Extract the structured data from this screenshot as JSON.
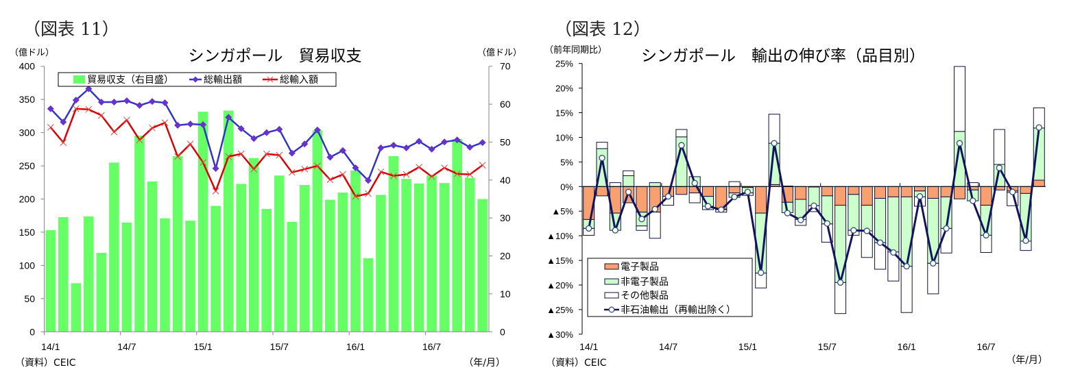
{
  "figure_labels": {
    "left": "（図表 11）",
    "right": "（図表 12）"
  },
  "chart_data": [
    {
      "type": "bar+line",
      "title": "シンガポール　貿易収支",
      "ylabel_left": "（億ドル）",
      "ylabel_right": "（億ドル）",
      "xlabel": "（年/月）",
      "source": "（資料）CEIC",
      "ylim_left": [
        0,
        400
      ],
      "ylim_right": [
        0,
        70
      ],
      "yticks_left": [
        "0",
        "50",
        "100",
        "150",
        "200",
        "250",
        "300",
        "350",
        "400"
      ],
      "yticks_right": [
        "0",
        "10",
        "20",
        "30",
        "40",
        "50",
        "60",
        "70"
      ],
      "xtick_labels": [
        "14/1",
        "14/7",
        "15/1",
        "15/7",
        "16/1",
        "16/7"
      ],
      "months_per_tick": 6,
      "grid": false,
      "legend_position": "top-left",
      "series": [
        {
          "name": "貿易収支（右目盛）",
          "type": "bar",
          "axis": "right",
          "color": "#66FF66",
          "values": [
            26.8,
            30.2,
            12.8,
            30.4,
            20.8,
            44.6,
            28.8,
            51.7,
            39.6,
            29.9,
            46.3,
            29.3,
            58.0,
            33.2,
            58.3,
            39.0,
            45.8,
            32.4,
            41.2,
            29.0,
            38.7,
            53.1,
            34.8,
            36.7,
            42.5,
            19.4,
            36.1,
            46.3,
            40.3,
            39.1,
            41.2,
            39.2,
            50.8,
            40.6,
            35.0
          ]
        },
        {
          "name": "総輸出額",
          "type": "line",
          "axis": "left",
          "color": "#3333CC",
          "marker": "diamond",
          "marker_color": "#6633CC",
          "values": [
            336,
            316,
            349,
            366,
            346,
            346,
            348,
            341,
            347,
            345,
            311,
            313,
            312,
            246,
            323,
            306,
            291,
            300,
            305,
            269,
            283,
            304,
            263,
            273,
            247,
            228,
            277,
            281,
            277,
            287,
            275,
            286,
            289,
            278,
            285
          ]
        },
        {
          "name": "総輸入額",
          "type": "line",
          "axis": "left",
          "color": "#DD0000",
          "marker": "x",
          "marker_color": "#E04848",
          "values": [
            308,
            285,
            336,
            335,
            326,
            301,
            319,
            289,
            307,
            315,
            264,
            283,
            255,
            212,
            264,
            268,
            245,
            268,
            266,
            240,
            245,
            250,
            229,
            237,
            204,
            208,
            241,
            235,
            237,
            248,
            234,
            247,
            238,
            237,
            251
          ]
        }
      ]
    },
    {
      "type": "stacked-bar+line",
      "title": "シンガポール　輸出の伸び率（品目別）",
      "ylabel": "（前年同期比）",
      "xlabel": "（年/月）",
      "source": "（資料）CEIC",
      "ylim": [
        -30,
        25
      ],
      "ytick_values": [
        25,
        20,
        15,
        10,
        5,
        0,
        -5,
        -10,
        -15,
        -20,
        -25,
        -30
      ],
      "yticks": [
        "25%",
        "20%",
        "15%",
        "10%",
        "5%",
        "0%",
        "▲5%",
        "▲10%",
        "▲15%",
        "▲20%",
        "▲25%",
        "▲30%"
      ],
      "xtick_labels": [
        "14/1",
        "14/7",
        "15/1",
        "15/7",
        "16/1",
        "16/7"
      ],
      "months_per_tick": 6,
      "grid": false,
      "legend_position": "bottom-left",
      "series": [
        {
          "name": "電子製品",
          "type": "bar",
          "color": "#F8A070",
          "values": [
            -6.7,
            -1.9,
            -5.4,
            -3.3,
            -5.2,
            -5.2,
            -2.0,
            -1.6,
            -1.3,
            -2.0,
            -4.6,
            -1.3,
            -0.2,
            -5.4,
            0.4,
            -3.2,
            -2.6,
            -0.1,
            -1.9,
            -3.8,
            -1.6,
            -3.8,
            -2.4,
            -2.1,
            -2.1,
            -0.9,
            -2.4,
            -2.1,
            -2.5,
            -0.7,
            -3.8,
            -0.7,
            -0.9,
            -1.4,
            1.3
          ]
        },
        {
          "name": "非電子製品",
          "type": "bar",
          "color": "#CCFFCC",
          "values": [
            -1.8,
            7.7,
            -3.5,
            2.2,
            -2.8,
            0.8,
            0.0,
            10.1,
            2.0,
            -2.0,
            -0.1,
            -0.9,
            -1.1,
            -12.2,
            8.4,
            -2.1,
            -4.1,
            -3.8,
            -5.7,
            -15.7,
            -7.3,
            -5.2,
            -9.0,
            -11.2,
            -14.1,
            -1.2,
            -13.2,
            -6.4,
            11.2,
            -2.2,
            -6.1,
            4.5,
            -0.3,
            -9.7,
            10.6
          ]
        },
        {
          "name": "その他製品",
          "type": "bar",
          "color": "#FFFFFF",
          "values": [
            -1.4,
            1.3,
            0.8,
            1.0,
            -0.9,
            -5.3,
            -1.8,
            1.5,
            -2.0,
            -0.7,
            -0.5,
            1.0,
            -0.5,
            -3.0,
            5.9,
            0.1,
            -1.2,
            -1.2,
            -3.7,
            -6.3,
            -1.0,
            -5.4,
            -5.4,
            -5.9,
            -9.4,
            -1.9,
            -6.2,
            -5.0,
            13.2,
            0.8,
            -3.5,
            7.1,
            -2.7,
            -1.9,
            4.1
          ]
        },
        {
          "name": "非石油輸出（再輸出除く）",
          "type": "line",
          "color": "#12145E",
          "marker": "circle",
          "marker_color": "#FFFFFF",
          "values": [
            -8.5,
            5.8,
            -8.9,
            -1.1,
            -6.6,
            -4.6,
            -2.0,
            8.4,
            0.7,
            -4.0,
            -4.7,
            -2.1,
            -1.1,
            -17.5,
            8.8,
            -5.4,
            -6.8,
            -3.9,
            -7.5,
            -19.5,
            -8.9,
            -9.0,
            -11.4,
            -13.4,
            -16.2,
            -2.0,
            -15.6,
            -8.5,
            8.8,
            -2.9,
            -9.9,
            3.8,
            -1.1,
            -11.0,
            12.0
          ]
        }
      ]
    }
  ]
}
